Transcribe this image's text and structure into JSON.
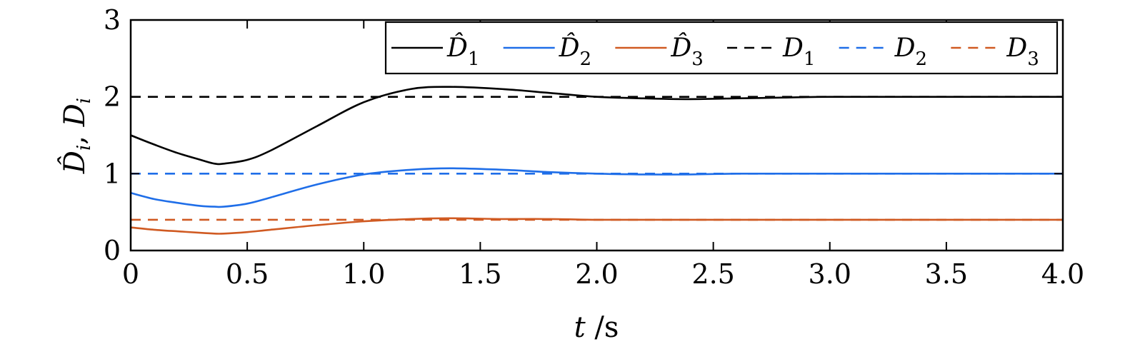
{
  "chart_data": {
    "type": "line",
    "xlabel": {
      "var": "t",
      "unit": " /s"
    },
    "ylabel": {
      "hat_var": "D̂",
      "hat_sub": "i",
      "sep": ", ",
      "var": "D",
      "sub": "i"
    },
    "xlim": [
      0,
      4
    ],
    "ylim": [
      0,
      3
    ],
    "x_ticks": [
      "0",
      "0.5",
      "1.0",
      "1.5",
      "2.0",
      "2.5",
      "3.0",
      "3.5",
      "4.0"
    ],
    "y_ticks": [
      "0",
      "1",
      "2",
      "3"
    ],
    "grid": false,
    "legend_position": "top-right",
    "x": [
      0,
      0.1,
      0.2,
      0.3,
      0.36,
      0.4,
      0.5,
      0.6,
      0.8,
      1.0,
      1.2,
      1.37,
      1.6,
      1.8,
      2.0,
      2.2,
      2.4,
      2.6,
      2.8,
      3.0,
      3.5,
      4.0
    ],
    "series": [
      {
        "name": "D̂",
        "sub": "1",
        "color": "#000000",
        "dash": "solid",
        "values": [
          1.5,
          1.38,
          1.27,
          1.18,
          1.13,
          1.13,
          1.18,
          1.3,
          1.62,
          1.93,
          2.1,
          2.13,
          2.1,
          2.05,
          2.0,
          1.98,
          1.97,
          1.98,
          1.99,
          2.0,
          2.0,
          2.0
        ]
      },
      {
        "name": "D̂",
        "sub": "2",
        "color": "#1f6ee8",
        "dash": "solid",
        "values": [
          0.75,
          0.67,
          0.62,
          0.58,
          0.57,
          0.57,
          0.61,
          0.69,
          0.86,
          0.99,
          1.05,
          1.07,
          1.05,
          1.02,
          1.0,
          0.99,
          0.99,
          1.0,
          1.0,
          1.0,
          1.0,
          1.0
        ]
      },
      {
        "name": "D̂",
        "sub": "3",
        "color": "#d05a22",
        "dash": "solid",
        "values": [
          0.3,
          0.27,
          0.25,
          0.23,
          0.22,
          0.22,
          0.24,
          0.27,
          0.33,
          0.38,
          0.41,
          0.42,
          0.41,
          0.41,
          0.4,
          0.4,
          0.4,
          0.4,
          0.4,
          0.4,
          0.4,
          0.4
        ]
      },
      {
        "name": "D",
        "sub": "1",
        "color": "#000000",
        "dash": "dashed",
        "values": [
          2,
          2,
          2,
          2,
          2,
          2,
          2,
          2,
          2,
          2,
          2,
          2,
          2,
          2,
          2,
          2,
          2,
          2,
          2,
          2,
          2,
          2
        ]
      },
      {
        "name": "D",
        "sub": "2",
        "color": "#1f6ee8",
        "dash": "dashed",
        "values": [
          1,
          1,
          1,
          1,
          1,
          1,
          1,
          1,
          1,
          1,
          1,
          1,
          1,
          1,
          1,
          1,
          1,
          1,
          1,
          1,
          1,
          1
        ]
      },
      {
        "name": "D",
        "sub": "3",
        "color": "#d05a22",
        "dash": "dashed",
        "values": [
          0.4,
          0.4,
          0.4,
          0.4,
          0.4,
          0.4,
          0.4,
          0.4,
          0.4,
          0.4,
          0.4,
          0.4,
          0.4,
          0.4,
          0.4,
          0.4,
          0.4,
          0.4,
          0.4,
          0.4,
          0.4,
          0.4
        ]
      }
    ]
  }
}
